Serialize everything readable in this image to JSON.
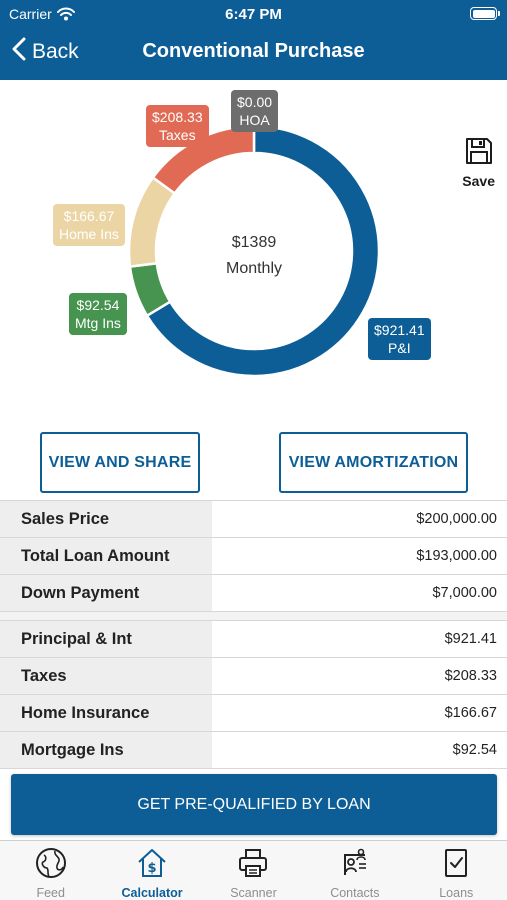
{
  "status_bar": {
    "carrier": "Carrier",
    "time": "6:47 PM"
  },
  "nav": {
    "back_label": "Back",
    "title": "Conventional Purchase"
  },
  "save_label": "Save",
  "chart_data": {
    "type": "pie",
    "categories": [
      "P&I",
      "Mtg Ins",
      "Home Ins",
      "Taxes",
      "HOA"
    ],
    "values": [
      921.41,
      92.54,
      166.67,
      208.33,
      0.0
    ],
    "colors": [
      "#0d5e97",
      "#46944f",
      "#ecd5a4",
      "#e16a54",
      "#6d6d6d"
    ],
    "title": "$1389",
    "subtitle": "Monthly",
    "labels": [
      {
        "amount": "$921.41",
        "name": "P&I"
      },
      {
        "amount": "$92.54",
        "name": "Mtg Ins"
      },
      {
        "amount": "$166.67",
        "name": "Home Ins"
      },
      {
        "amount": "$208.33",
        "name": "Taxes"
      },
      {
        "amount": "$0.00",
        "name": "HOA"
      }
    ]
  },
  "buttons": {
    "view_share": "VIEW AND SHARE",
    "view_amortization": "VIEW AMORTIZATION",
    "prequalify": "GET PRE-QUALIFIED BY LOAN"
  },
  "loan_summary": [
    {
      "label": "Sales Price",
      "value": "$200,000.00"
    },
    {
      "label": "Total Loan Amount",
      "value": "$193,000.00"
    },
    {
      "label": "Down Payment",
      "value": "$7,000.00"
    }
  ],
  "payment_breakdown": [
    {
      "label": "Principal & Int",
      "value": "$921.41"
    },
    {
      "label": "Taxes",
      "value": "$208.33"
    },
    {
      "label": "Home Insurance",
      "value": "$166.67"
    },
    {
      "label": "Mortgage Ins",
      "value": "$92.54"
    }
  ],
  "tabs": [
    {
      "label": "Feed",
      "icon": "globe-icon"
    },
    {
      "label": "Calculator",
      "icon": "house-dollar-icon",
      "active": true
    },
    {
      "label": "Scanner",
      "icon": "printer-icon"
    },
    {
      "label": "Contacts",
      "icon": "contacts-icon"
    },
    {
      "label": "Loans",
      "icon": "clipboard-check-icon"
    }
  ]
}
